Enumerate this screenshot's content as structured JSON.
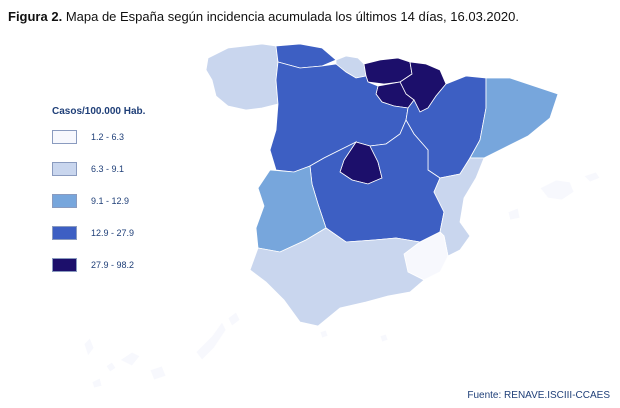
{
  "caption": {
    "label": "Figura 2.",
    "text": "Mapa de España según incidencia acumulada los últimos 14 días, 16.03.2020."
  },
  "legend": {
    "title": "Casos/100.000 Hab.",
    "classes": [
      {
        "label": "1.2 - 6.3",
        "color": "#f7f8fd"
      },
      {
        "label": "6.3 - 9.1",
        "color": "#c9d6ee"
      },
      {
        "label": "9.1 - 12.9",
        "color": "#77a6dc"
      },
      {
        "label": "12.9 - 27.9",
        "color": "#3d5fc3"
      },
      {
        "label": "27.9 - 98.2",
        "color": "#1c0f6b"
      }
    ]
  },
  "regions": [
    {
      "name": "Galicia",
      "class": 1
    },
    {
      "name": "Asturias",
      "class": 3
    },
    {
      "name": "Cantabria",
      "class": 1
    },
    {
      "name": "País Vasco",
      "class": 4
    },
    {
      "name": "Navarra",
      "class": 4
    },
    {
      "name": "La Rioja",
      "class": 4
    },
    {
      "name": "Castilla y León",
      "class": 3
    },
    {
      "name": "Aragón",
      "class": 3
    },
    {
      "name": "Cataluña",
      "class": 2
    },
    {
      "name": "Madrid",
      "class": 4
    },
    {
      "name": "Castilla-La Mancha",
      "class": 3
    },
    {
      "name": "Extremadura",
      "class": 2
    },
    {
      "name": "Comunidad Valenciana",
      "class": 1
    },
    {
      "name": "Murcia",
      "class": 0
    },
    {
      "name": "Andalucía",
      "class": 1
    },
    {
      "name": "Islas Baleares",
      "class": 0
    },
    {
      "name": "Islas Canarias",
      "class": 0
    },
    {
      "name": "Ceuta",
      "class": 0
    },
    {
      "name": "Melilla",
      "class": 0
    }
  ],
  "source": "Fuente: RENAVE.ISCIII-CCAES"
}
